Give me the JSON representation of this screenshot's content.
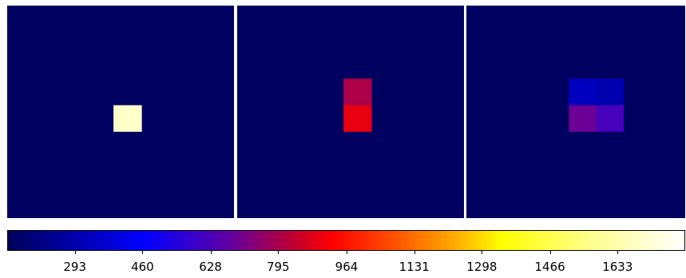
{
  "chart_data": {
    "type": "heatmap",
    "colormap": "gist_stern-like: navy → blue → red → orange → yellow → white",
    "color_range": [
      126,
      1800
    ],
    "colorbar": {
      "orientation": "horizontal",
      "ticks": [
        293,
        460,
        628,
        795,
        964,
        1131,
        1298,
        1466,
        1633
      ]
    },
    "panels": [
      {
        "name": "panel-1",
        "grid_size": [
          8,
          8
        ],
        "background_value": 140,
        "cells": [
          {
            "row": 3.75,
            "col": 3.75,
            "w": 1,
            "h": 1,
            "value": 1690
          }
        ]
      },
      {
        "name": "panel-2",
        "grid_size": [
          8,
          8
        ],
        "background_value": 140,
        "cells": [
          {
            "row": 2.75,
            "col": 3.75,
            "w": 1,
            "h": 1,
            "value": 800
          },
          {
            "row": 3.75,
            "col": 3.75,
            "w": 1,
            "h": 1,
            "value": 895
          }
        ]
      },
      {
        "name": "panel-3",
        "grid_size": [
          8,
          8
        ],
        "background_value": 140,
        "cells": [
          {
            "row": 2.75,
            "col": 3.75,
            "w": 1,
            "h": 1,
            "value": 330
          },
          {
            "row": 2.75,
            "col": 4.75,
            "w": 1,
            "h": 1,
            "value": 300
          },
          {
            "row": 3.75,
            "col": 3.75,
            "w": 1,
            "h": 1,
            "value": 690
          },
          {
            "row": 3.75,
            "col": 4.75,
            "w": 1,
            "h": 1,
            "value": 620
          }
        ]
      }
    ]
  }
}
